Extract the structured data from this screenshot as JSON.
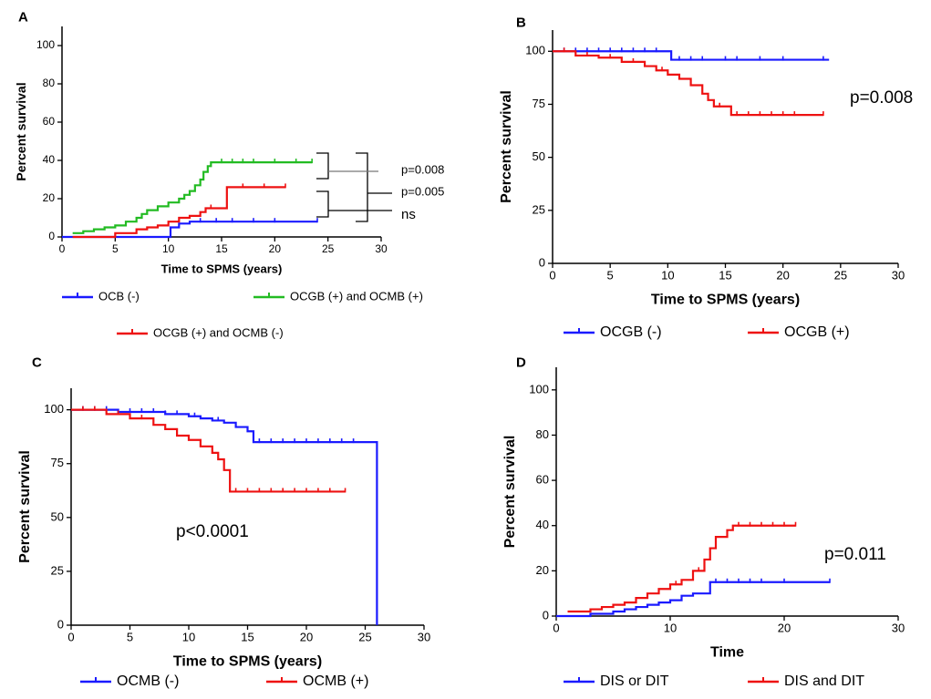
{
  "chart_data": [
    {
      "panel": "A",
      "type": "line",
      "title": "",
      "xlabel": "Time to SPMS (years)",
      "ylabel": "Percent survival",
      "xlim": [
        0,
        30
      ],
      "ylim": [
        0,
        100
      ],
      "xticks": [
        0,
        5,
        10,
        15,
        20,
        25,
        30
      ],
      "yticks": [
        0,
        20,
        40,
        60,
        80,
        100
      ],
      "series": [
        {
          "name": "OCB (-)",
          "color": "#1a1aff",
          "x": [
            0,
            9.8,
            10.2,
            11,
            12,
            24
          ],
          "y": [
            0,
            0,
            5,
            7,
            8,
            8
          ],
          "censor_x": [
            13,
            14.5,
            16,
            18,
            20,
            24
          ]
        },
        {
          "name": "OCGB (+) and OCMB (+)",
          "color": "#22bb22",
          "x": [
            1,
            2,
            3,
            4,
            5,
            6,
            7,
            7.5,
            8,
            9,
            10,
            11,
            11.5,
            12,
            12.5,
            13,
            13.3,
            13.7,
            14,
            23.5
          ],
          "y": [
            2,
            3,
            4,
            5,
            6,
            8,
            10,
            12,
            14,
            16,
            18,
            20,
            22,
            24,
            27,
            30,
            34,
            37,
            39,
            39
          ],
          "censor_x": [
            15,
            16,
            17,
            18,
            20,
            22,
            23.5
          ]
        },
        {
          "name": "OCGB (+) and OCMB (-)",
          "color": "#ee1111",
          "x": [
            1,
            5,
            7,
            8,
            9,
            10,
            11,
            12,
            13,
            13.5,
            15.5,
            21
          ],
          "y": [
            0,
            2,
            4,
            5,
            6,
            8,
            10,
            11,
            13,
            15,
            26,
            26
          ],
          "censor_x": [
            14,
            17,
            19,
            21
          ]
        }
      ],
      "annotations": [
        "p=0.008",
        "p=0.005",
        "ns"
      ]
    },
    {
      "panel": "B",
      "type": "line",
      "title": "",
      "xlabel": "Time to SPMS (years)",
      "ylabel": "Percent survival",
      "xlim": [
        0,
        30
      ],
      "ylim": [
        0,
        100
      ],
      "xticks": [
        0,
        5,
        10,
        15,
        20,
        25,
        30
      ],
      "yticks": [
        0,
        25,
        50,
        75,
        100
      ],
      "series": [
        {
          "name": "OCGB (-)",
          "color": "#1a1aff",
          "x": [
            0,
            10,
            10.3,
            24
          ],
          "y": [
            100,
            100,
            96,
            96
          ],
          "censor_x": [
            1,
            2,
            3,
            4,
            5,
            6,
            7,
            8,
            9,
            11,
            12,
            13,
            15,
            16,
            18,
            20,
            23.5
          ]
        },
        {
          "name": "OCGB (+)",
          "color": "#ee1111",
          "x": [
            0,
            2,
            4,
            6,
            8,
            9,
            10,
            11,
            12,
            13,
            13.5,
            14,
            15,
            15.5,
            23.5
          ],
          "y": [
            100,
            98,
            97,
            95,
            93,
            91,
            89,
            87,
            84,
            80,
            77,
            74,
            74,
            70,
            70
          ],
          "censor_x": [
            1,
            3,
            5,
            7,
            9.5,
            14.5,
            16,
            17,
            18,
            19,
            20,
            21,
            23.5
          ]
        }
      ],
      "annotations": [
        "p=0.008"
      ]
    },
    {
      "panel": "C",
      "type": "line",
      "title": "",
      "xlabel": "Time to SPMS (years)",
      "ylabel": "Percent survival",
      "xlim": [
        0,
        30
      ],
      "ylim": [
        0,
        100
      ],
      "xticks": [
        0,
        5,
        10,
        15,
        20,
        25,
        30
      ],
      "yticks": [
        0,
        25,
        50,
        75,
        100
      ],
      "series": [
        {
          "name": "OCMB (-)",
          "color": "#1a1aff",
          "x": [
            0,
            4,
            8,
            10,
            11,
            12,
            13,
            14,
            15,
            15.5,
            26,
            26
          ],
          "y": [
            100,
            99,
            98,
            97,
            96,
            95,
            94,
            92,
            90,
            85,
            85,
            0
          ],
          "censor_x": [
            1,
            2,
            3,
            5,
            6,
            7,
            8,
            9,
            10.5,
            12.5,
            16,
            17,
            18,
            19,
            20,
            21,
            22,
            23,
            24
          ]
        },
        {
          "name": "OCMB (+)",
          "color": "#ee1111",
          "x": [
            0,
            3,
            5,
            7,
            8,
            9,
            10,
            11,
            12,
            12.5,
            13,
            13.5,
            23.3
          ],
          "y": [
            100,
            98,
            96,
            93,
            91,
            88,
            86,
            83,
            80,
            77,
            72,
            62,
            62
          ],
          "censor_x": [
            1,
            2,
            4,
            6,
            14,
            15,
            16,
            17,
            18,
            19,
            20,
            21,
            22,
            23.3
          ]
        }
      ],
      "annotations": [
        "p<0.0001"
      ]
    },
    {
      "panel": "D",
      "type": "line",
      "title": "",
      "xlabel": "Time",
      "ylabel": "Percent survival",
      "xlim": [
        0,
        30
      ],
      "ylim": [
        0,
        100
      ],
      "xticks": [
        0,
        10,
        20,
        30
      ],
      "yticks": [
        0,
        20,
        40,
        60,
        80,
        100
      ],
      "series": [
        {
          "name": "DIS or DIT",
          "color": "#1a1aff",
          "x": [
            0,
            3,
            5,
            6,
            7,
            8,
            9,
            10,
            11,
            12,
            13.5,
            24
          ],
          "y": [
            0,
            1,
            2,
            3,
            4,
            5,
            6,
            7,
            9,
            10,
            15,
            15
          ],
          "censor_x": [
            14,
            15,
            16,
            17,
            18,
            20,
            24
          ]
        },
        {
          "name": "DIS and DIT",
          "color": "#ee1111",
          "x": [
            1,
            3,
            4,
            5,
            6,
            7,
            8,
            9,
            10,
            11,
            12,
            13,
            13.5,
            14,
            15,
            15.5,
            21
          ],
          "y": [
            2,
            3,
            4,
            5,
            6,
            8,
            10,
            12,
            14,
            16,
            20,
            25,
            30,
            35,
            38,
            40,
            40
          ],
          "censor_x": [
            10.5,
            12.5,
            16,
            17,
            18,
            19,
            20,
            21
          ]
        }
      ],
      "annotations": [
        "p=0.011"
      ]
    }
  ]
}
